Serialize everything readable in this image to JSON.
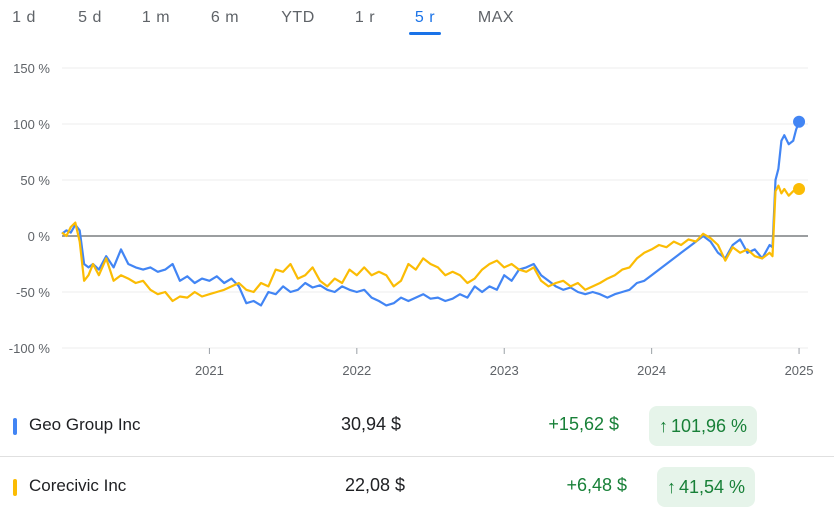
{
  "tabs": [
    {
      "label": "1 d"
    },
    {
      "label": "5 d"
    },
    {
      "label": "1 m"
    },
    {
      "label": "6 m"
    },
    {
      "label": "YTD"
    },
    {
      "label": "1 r"
    },
    {
      "label": "5 r"
    },
    {
      "label": "MAX"
    }
  ],
  "active_tab": "5 r",
  "colors": {
    "geo": "#4285f4",
    "corecivic": "#fbbc04",
    "positive": "#188038",
    "accent": "#1a73e8"
  },
  "stocks": [
    {
      "name": "Geo Group Inc",
      "price": "30,94 $",
      "change": "+15,62 $",
      "percent": "101,96 %",
      "color": "#4285f4",
      "arrow": "↑"
    },
    {
      "name": "Corecivic Inc",
      "price": "22,08 $",
      "change": "+6,48 $",
      "percent": "41,54 %",
      "color": "#fbbc04",
      "arrow": "↑"
    }
  ],
  "chart_data": {
    "type": "line",
    "y_tick_labels": [
      "150 %",
      "100 %",
      "50 %",
      "0 %",
      "-50 %",
      "-100 %"
    ],
    "y_ticks": [
      150,
      100,
      50,
      0,
      -50,
      -100
    ],
    "ylim": [
      -100,
      150
    ],
    "x_tick_labels": [
      "2021",
      "2022",
      "2023",
      "2024",
      "2025"
    ],
    "x_ticks": [
      2021,
      2022,
      2023,
      2024,
      2025
    ],
    "xlim": [
      2020.0,
      2025.02
    ],
    "grid": true,
    "series": [
      {
        "name": "Geo Group Inc",
        "points": [
          [
            2020.0,
            2
          ],
          [
            2020.03,
            5
          ],
          [
            2020.06,
            3
          ],
          [
            2020.09,
            10
          ],
          [
            2020.12,
            5
          ],
          [
            2020.15,
            -25
          ],
          [
            2020.18,
            -28
          ],
          [
            2020.21,
            -25
          ],
          [
            2020.25,
            -30
          ],
          [
            2020.3,
            -18
          ],
          [
            2020.35,
            -28
          ],
          [
            2020.4,
            -12
          ],
          [
            2020.45,
            -25
          ],
          [
            2020.5,
            -28
          ],
          [
            2020.55,
            -30
          ],
          [
            2020.6,
            -28
          ],
          [
            2020.65,
            -32
          ],
          [
            2020.7,
            -30
          ],
          [
            2020.75,
            -25
          ],
          [
            2020.8,
            -40
          ],
          [
            2020.85,
            -36
          ],
          [
            2020.9,
            -42
          ],
          [
            2020.95,
            -38
          ],
          [
            2021.0,
            -40
          ],
          [
            2021.05,
            -36
          ],
          [
            2021.1,
            -42
          ],
          [
            2021.15,
            -38
          ],
          [
            2021.2,
            -45
          ],
          [
            2021.25,
            -60
          ],
          [
            2021.3,
            -58
          ],
          [
            2021.35,
            -62
          ],
          [
            2021.4,
            -50
          ],
          [
            2021.45,
            -52
          ],
          [
            2021.5,
            -45
          ],
          [
            2021.55,
            -50
          ],
          [
            2021.6,
            -48
          ],
          [
            2021.65,
            -42
          ],
          [
            2021.7,
            -46
          ],
          [
            2021.75,
            -44
          ],
          [
            2021.8,
            -48
          ],
          [
            2021.85,
            -50
          ],
          [
            2021.9,
            -45
          ],
          [
            2021.95,
            -48
          ],
          [
            2022.0,
            -50
          ],
          [
            2022.05,
            -48
          ],
          [
            2022.1,
            -55
          ],
          [
            2022.15,
            -58
          ],
          [
            2022.2,
            -62
          ],
          [
            2022.25,
            -60
          ],
          [
            2022.3,
            -55
          ],
          [
            2022.35,
            -58
          ],
          [
            2022.4,
            -55
          ],
          [
            2022.45,
            -52
          ],
          [
            2022.5,
            -56
          ],
          [
            2022.55,
            -55
          ],
          [
            2022.6,
            -58
          ],
          [
            2022.65,
            -56
          ],
          [
            2022.7,
            -52
          ],
          [
            2022.75,
            -55
          ],
          [
            2022.8,
            -45
          ],
          [
            2022.85,
            -50
          ],
          [
            2022.9,
            -45
          ],
          [
            2022.95,
            -48
          ],
          [
            2023.0,
            -35
          ],
          [
            2023.05,
            -40
          ],
          [
            2023.1,
            -30
          ],
          [
            2023.15,
            -28
          ],
          [
            2023.2,
            -25
          ],
          [
            2023.25,
            -35
          ],
          [
            2023.3,
            -40
          ],
          [
            2023.35,
            -45
          ],
          [
            2023.4,
            -48
          ],
          [
            2023.45,
            -46
          ],
          [
            2023.5,
            -50
          ],
          [
            2023.55,
            -52
          ],
          [
            2023.6,
            -50
          ],
          [
            2023.65,
            -52
          ],
          [
            2023.7,
            -55
          ],
          [
            2023.75,
            -52
          ],
          [
            2023.8,
            -50
          ],
          [
            2023.85,
            -48
          ],
          [
            2023.9,
            -42
          ],
          [
            2023.95,
            -40
          ],
          [
            2024.0,
            -35
          ],
          [
            2024.05,
            -30
          ],
          [
            2024.1,
            -25
          ],
          [
            2024.15,
            -20
          ],
          [
            2024.2,
            -15
          ],
          [
            2024.25,
            -10
          ],
          [
            2024.3,
            -5
          ],
          [
            2024.35,
            0
          ],
          [
            2024.4,
            -5
          ],
          [
            2024.45,
            -15
          ],
          [
            2024.5,
            -20
          ],
          [
            2024.55,
            -8
          ],
          [
            2024.6,
            -3
          ],
          [
            2024.65,
            -15
          ],
          [
            2024.7,
            -12
          ],
          [
            2024.75,
            -20
          ],
          [
            2024.8,
            -8
          ],
          [
            2024.82,
            -10
          ],
          [
            2024.84,
            50
          ],
          [
            2024.86,
            60
          ],
          [
            2024.88,
            85
          ],
          [
            2024.9,
            90
          ],
          [
            2024.93,
            82
          ],
          [
            2024.96,
            85
          ],
          [
            2024.98,
            95
          ],
          [
            2025.0,
            102
          ]
        ]
      },
      {
        "name": "Corecivic Inc",
        "points": [
          [
            2020.0,
            3
          ],
          [
            2020.03,
            0
          ],
          [
            2020.06,
            8
          ],
          [
            2020.09,
            12
          ],
          [
            2020.12,
            -5
          ],
          [
            2020.15,
            -40
          ],
          [
            2020.18,
            -35
          ],
          [
            2020.21,
            -25
          ],
          [
            2020.25,
            -35
          ],
          [
            2020.3,
            -20
          ],
          [
            2020.35,
            -40
          ],
          [
            2020.4,
            -35
          ],
          [
            2020.45,
            -38
          ],
          [
            2020.5,
            -42
          ],
          [
            2020.55,
            -40
          ],
          [
            2020.6,
            -48
          ],
          [
            2020.65,
            -52
          ],
          [
            2020.7,
            -50
          ],
          [
            2020.75,
            -58
          ],
          [
            2020.8,
            -54
          ],
          [
            2020.85,
            -55
          ],
          [
            2020.9,
            -50
          ],
          [
            2020.95,
            -54
          ],
          [
            2021.0,
            -52
          ],
          [
            2021.05,
            -50
          ],
          [
            2021.1,
            -48
          ],
          [
            2021.15,
            -45
          ],
          [
            2021.2,
            -42
          ],
          [
            2021.25,
            -48
          ],
          [
            2021.3,
            -50
          ],
          [
            2021.35,
            -42
          ],
          [
            2021.4,
            -45
          ],
          [
            2021.45,
            -30
          ],
          [
            2021.5,
            -32
          ],
          [
            2021.55,
            -25
          ],
          [
            2021.6,
            -38
          ],
          [
            2021.65,
            -35
          ],
          [
            2021.7,
            -28
          ],
          [
            2021.75,
            -40
          ],
          [
            2021.8,
            -45
          ],
          [
            2021.85,
            -38
          ],
          [
            2021.9,
            -42
          ],
          [
            2021.95,
            -30
          ],
          [
            2022.0,
            -35
          ],
          [
            2022.05,
            -28
          ],
          [
            2022.1,
            -35
          ],
          [
            2022.15,
            -32
          ],
          [
            2022.2,
            -35
          ],
          [
            2022.25,
            -45
          ],
          [
            2022.3,
            -40
          ],
          [
            2022.35,
            -25
          ],
          [
            2022.4,
            -30
          ],
          [
            2022.45,
            -20
          ],
          [
            2022.5,
            -25
          ],
          [
            2022.55,
            -28
          ],
          [
            2022.6,
            -35
          ],
          [
            2022.65,
            -32
          ],
          [
            2022.7,
            -35
          ],
          [
            2022.75,
            -42
          ],
          [
            2022.8,
            -38
          ],
          [
            2022.85,
            -30
          ],
          [
            2022.9,
            -25
          ],
          [
            2022.95,
            -22
          ],
          [
            2023.0,
            -28
          ],
          [
            2023.05,
            -25
          ],
          [
            2023.1,
            -30
          ],
          [
            2023.15,
            -32
          ],
          [
            2023.2,
            -28
          ],
          [
            2023.25,
            -40
          ],
          [
            2023.3,
            -45
          ],
          [
            2023.35,
            -42
          ],
          [
            2023.4,
            -40
          ],
          [
            2023.45,
            -45
          ],
          [
            2023.5,
            -42
          ],
          [
            2023.55,
            -48
          ],
          [
            2023.6,
            -45
          ],
          [
            2023.65,
            -42
          ],
          [
            2023.7,
            -38
          ],
          [
            2023.75,
            -35
          ],
          [
            2023.8,
            -30
          ],
          [
            2023.85,
            -28
          ],
          [
            2023.9,
            -20
          ],
          [
            2023.95,
            -15
          ],
          [
            2024.0,
            -12
          ],
          [
            2024.05,
            -8
          ],
          [
            2024.1,
            -10
          ],
          [
            2024.15,
            -5
          ],
          [
            2024.2,
            -8
          ],
          [
            2024.25,
            -3
          ],
          [
            2024.3,
            -5
          ],
          [
            2024.35,
            2
          ],
          [
            2024.4,
            -2
          ],
          [
            2024.45,
            -8
          ],
          [
            2024.5,
            -22
          ],
          [
            2024.55,
            -10
          ],
          [
            2024.6,
            -15
          ],
          [
            2024.65,
            -12
          ],
          [
            2024.7,
            -18
          ],
          [
            2024.75,
            -20
          ],
          [
            2024.8,
            -15
          ],
          [
            2024.82,
            -18
          ],
          [
            2024.84,
            40
          ],
          [
            2024.86,
            45
          ],
          [
            2024.88,
            38
          ],
          [
            2024.9,
            42
          ],
          [
            2024.93,
            36
          ],
          [
            2024.96,
            40
          ],
          [
            2025.0,
            42
          ]
        ]
      }
    ]
  }
}
